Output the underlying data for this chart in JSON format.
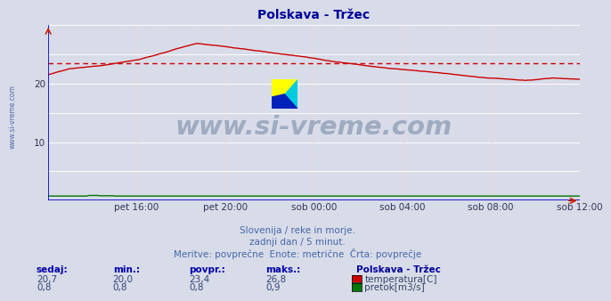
{
  "title": "Polskava - Tržec",
  "title_color": "#000099",
  "bg_color": "#d8dce8",
  "plot_bg_color": "#d8dce8",
  "grid_color": "#ffffff",
  "grid_dotted_color": "#ffcccc",
  "text_color": "#4466aa",
  "watermark": "www.si-vreme.com",
  "watermark_color": "#1a3a6a",
  "ylim": [
    0,
    30
  ],
  "ytick_vals": [
    10,
    20
  ],
  "xtick_labels": [
    "pet 16:00",
    "pet 20:00",
    "sob 00:00",
    "sob 04:00",
    "sob 08:00",
    "sob 12:00"
  ],
  "avg_line": 23.4,
  "avg_line_color": "#cc0000",
  "temp_line_color": "#cc0000",
  "flow_line_color": "#007700",
  "axis_color": "#0000cc",
  "subtitle1": "Slovenija / reke in morje.",
  "subtitle2": "zadnji dan / 5 minut.",
  "subtitle3": "Meritve: povprečne  Enote: metrične  Črta: povprečje",
  "label_sedaj": "sedaj:",
  "label_min": "min.:",
  "label_povpr": "povpr.:",
  "label_maks": "maks.:",
  "label_station": "Polskava - Tržec",
  "temp_sedaj": "20,7",
  "temp_min": "20,0",
  "temp_povpr": "23,4",
  "temp_maks": "26,8",
  "flow_sedaj": "0,8",
  "flow_min": "0,8",
  "flow_povpr": "0,8",
  "flow_maks": "0,9",
  "temp_label": "temperatura[C]",
  "flow_label": "pretok[m3/s]",
  "n_points": 289,
  "left_label": "www.si-vreme.com",
  "logo_colors": [
    "#ffff00",
    "#00ccdd",
    "#0022cc",
    "#000000"
  ],
  "logo_tri_upper": "#ffff00",
  "logo_tri_lower": "#00bbdd",
  "logo_rect_dark": "#0022bb"
}
